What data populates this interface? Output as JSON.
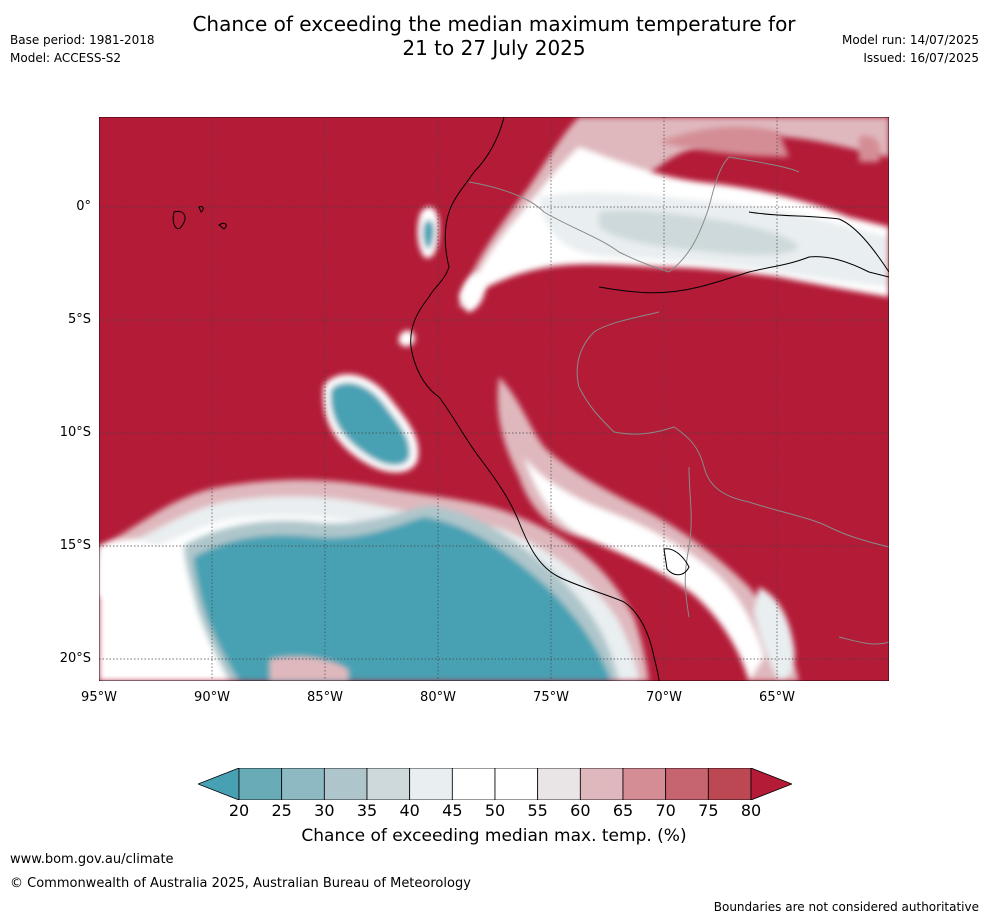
{
  "title": {
    "line1": "Chance of exceeding the median maximum temperature for",
    "line2": "21 to 27 July 2025"
  },
  "meta_left": {
    "base_period": "Base period: 1981-2018",
    "model": "Model: ACCESS-S2"
  },
  "meta_right": {
    "model_run": "Model run: 14/07/2025",
    "issued": "Issued: 16/07/2025"
  },
  "map": {
    "lat_labels": [
      "0°",
      "5°S",
      "10°S",
      "15°S",
      "20°S"
    ],
    "lon_labels": [
      "95°W",
      "90°W",
      "85°W",
      "80°W",
      "75°W",
      "70°W",
      "65°W"
    ],
    "base_color": "#b31b37"
  },
  "colorbar": {
    "ticks": [
      "20",
      "25",
      "30",
      "35",
      "40",
      "45",
      "50",
      "55",
      "60",
      "65",
      "70",
      "75",
      "80"
    ],
    "colors": [
      "#47a1b3",
      "#6aabb8",
      "#8db9c3",
      "#aec6cb",
      "#ced9db",
      "#e9eef0",
      "#ffffff",
      "#ffffff",
      "#e9e4e6",
      "#dfb8bd",
      "#d48d95",
      "#c66470",
      "#bb4853",
      "#b31b37"
    ],
    "label": "Chance of exceeding median max. temp. (%)"
  },
  "footer": {
    "website": "www.bom.gov.au/climate",
    "copyright": "© Commonwealth of Australia 2025, Australian Bureau of Meteorology",
    "disclaimer": "Boundaries are not considered authoritative"
  }
}
